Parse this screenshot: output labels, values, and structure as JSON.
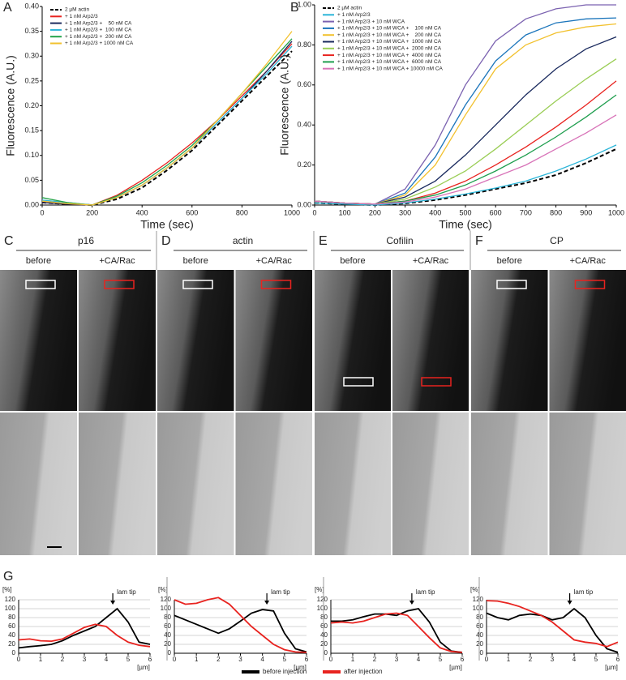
{
  "chart_data": [
    {
      "type": "line",
      "panel_label": "A",
      "y_label": "Fluorescence (A.U.)",
      "x_label": "Time (sec)",
      "legend": "upper left",
      "x": [
        0,
        100,
        200,
        300,
        400,
        500,
        600,
        700,
        800,
        900,
        1000
      ],
      "xlim": [
        0,
        1000
      ],
      "xticks": [
        0,
        200,
        400,
        600,
        800,
        1000
      ],
      "ylim": [
        0,
        0.4
      ],
      "yticks": [
        {
          "value": 0,
          "label": "0.00"
        },
        {
          "value": 0.05,
          "label": "0.05"
        },
        {
          "value": 0.1,
          "label": "0.10"
        },
        {
          "value": 0.15,
          "label": "0.15"
        },
        {
          "value": 0.2,
          "label": "0.20"
        },
        {
          "value": 0.25,
          "label": "0.25"
        },
        {
          "value": 0.3,
          "label": "0.30"
        },
        {
          "value": 0.35,
          "label": "0.35"
        },
        {
          "value": 0.4,
          "label": "0.40"
        }
      ],
      "series": [
        {
          "name": "2 µM actin",
          "color": "#000000",
          "style": "dashed",
          "values": [
            0.005,
            0.002,
            0.0,
            0.012,
            0.035,
            0.07,
            0.11,
            0.16,
            0.21,
            0.26,
            0.31
          ]
        },
        {
          "name": "+ 1 nM Arp2/3",
          "color": "#e8231f",
          "values": [
            0.005,
            0.002,
            0.0,
            0.02,
            0.05,
            0.085,
            0.125,
            0.17,
            0.22,
            0.27,
            0.325
          ]
        },
        {
          "name": "+ 1 nM Arp2/3 +    50 nM CA",
          "color": "#1a2a5e",
          "values": [
            0.005,
            0.002,
            0.0,
            0.015,
            0.04,
            0.075,
            0.115,
            0.165,
            0.215,
            0.27,
            0.33
          ]
        },
        {
          "name": "+ 1 nM Arp2/3 +  100 nM CA",
          "color": "#2bb5d8",
          "values": [
            0.01,
            0.005,
            0.0,
            0.015,
            0.04,
            0.075,
            0.115,
            0.165,
            0.215,
            0.265,
            0.32
          ]
        },
        {
          "name": "+ 1 nM Arp2/3 +  200 nM CA",
          "color": "#22a34a",
          "values": [
            0.015,
            0.005,
            0.0,
            0.018,
            0.045,
            0.08,
            0.12,
            0.17,
            0.225,
            0.28,
            0.335
          ]
        },
        {
          "name": "+ 1 nM Arp2/3 + 1000 nM CA",
          "color": "#f2c12e",
          "values": [
            0.008,
            0.003,
            0.0,
            0.015,
            0.04,
            0.075,
            0.115,
            0.17,
            0.225,
            0.285,
            0.35
          ]
        }
      ]
    },
    {
      "type": "line",
      "panel_label": "B",
      "y_label": "Fluorescence (A.U.)",
      "x_label": "Time (sec)",
      "legend": "upper left",
      "x": [
        0,
        100,
        200,
        300,
        400,
        500,
        600,
        700,
        800,
        900,
        1000
      ],
      "xlim": [
        0,
        1000
      ],
      "xticks": [
        0,
        100,
        200,
        300,
        400,
        500,
        600,
        700,
        800,
        900,
        1000
      ],
      "ylim": [
        0,
        1
      ],
      "yticks": [
        {
          "value": 0,
          "label": "0.00"
        },
        {
          "value": 0.2,
          "label": "0.20"
        },
        {
          "value": 0.4,
          "label": "0.40"
        },
        {
          "value": 0.6,
          "label": "0.60"
        },
        {
          "value": 0.8,
          "label": "0.80"
        },
        {
          "value": 1,
          "label": "1.00"
        }
      ],
      "series": [
        {
          "name": "2 µM actin",
          "color": "#000000",
          "style": "dashed",
          "values": [
            0.01,
            0.005,
            0.0,
            0.008,
            0.025,
            0.05,
            0.08,
            0.11,
            0.15,
            0.21,
            0.28
          ]
        },
        {
          "name": "+ 1 nM Arp2/3",
          "color": "#2bb5d8",
          "values": [
            0.01,
            0.005,
            0.0,
            0.01,
            0.03,
            0.055,
            0.085,
            0.12,
            0.17,
            0.23,
            0.3
          ]
        },
        {
          "name": "+ 1 nM Arp2/3 + 10 nM WCA",
          "color": "#7b62b0",
          "values": [
            0.02,
            0.01,
            0.005,
            0.08,
            0.3,
            0.6,
            0.82,
            0.93,
            0.98,
            1.0,
            1.0
          ]
        },
        {
          "name": "+ 1 nM Arp2/3 + 10 nM WCA +    100 nM CA",
          "color": "#1b75bb",
          "values": [
            0.02,
            0.01,
            0.005,
            0.06,
            0.24,
            0.5,
            0.72,
            0.85,
            0.91,
            0.93,
            0.935
          ]
        },
        {
          "name": "+ 1 nM Arp2/3 + 10 nM WCA +    200 nM CA",
          "color": "#f2c12e",
          "values": [
            0.02,
            0.01,
            0.005,
            0.05,
            0.2,
            0.45,
            0.68,
            0.8,
            0.86,
            0.89,
            0.905
          ]
        },
        {
          "name": "+ 1 nM Arp2/3 + 10 nM WCA +  1000 nM CA",
          "color": "#1a2a5e",
          "values": [
            0.02,
            0.01,
            0.005,
            0.04,
            0.12,
            0.25,
            0.4,
            0.55,
            0.68,
            0.78,
            0.84
          ]
        },
        {
          "name": "+ 1 nM Arp2/3 + 10 nM WCA +  2000 nM CA",
          "color": "#9acd55",
          "values": [
            0.02,
            0.01,
            0.005,
            0.03,
            0.09,
            0.17,
            0.28,
            0.4,
            0.52,
            0.63,
            0.73
          ]
        },
        {
          "name": "+ 1 nM Arp2/3 + 10 nM WCA +  4000 nM CA",
          "color": "#e8231f",
          "values": [
            0.02,
            0.01,
            0.005,
            0.02,
            0.06,
            0.12,
            0.2,
            0.29,
            0.39,
            0.5,
            0.62
          ]
        },
        {
          "name": "+ 1 nM Arp2/3 + 10 nM WCA +  6000 nM CA",
          "color": "#1f9e4e",
          "values": [
            0.02,
            0.01,
            0.005,
            0.02,
            0.05,
            0.1,
            0.17,
            0.25,
            0.34,
            0.44,
            0.55
          ]
        },
        {
          "name": "+ 1 nM Arp2/3 + 10 nM WCA + 10000 nM CA",
          "color": "#d873b8",
          "values": [
            0.02,
            0.01,
            0.005,
            0.015,
            0.04,
            0.08,
            0.14,
            0.2,
            0.28,
            0.36,
            0.45
          ]
        }
      ]
    },
    {
      "type": "line",
      "panel_label": "G",
      "y_label": "[%]",
      "x_label": "[µm]",
      "grid": true,
      "legend": "bottom",
      "x": [
        0,
        0.5,
        1,
        1.5,
        2,
        2.5,
        3,
        3.5,
        4,
        4.5,
        5,
        5.5,
        6
      ],
      "xlim": [
        0,
        6
      ],
      "xticks": [
        0,
        1,
        2,
        3,
        4,
        5,
        6
      ],
      "ylim": [
        0,
        120
      ],
      "yticks": [
        0,
        20,
        40,
        60,
        80,
        100,
        120
      ],
      "annotations": [
        {
          "text": "lam tip",
          "x": 4.3
        }
      ],
      "series": [
        {
          "name": "before injection",
          "color": "#000000",
          "values": [
            12,
            15,
            17,
            20,
            28,
            40,
            50,
            60,
            80,
            100,
            70,
            25,
            20
          ]
        },
        {
          "name": "after injection",
          "color": "#e8231f",
          "values": [
            30,
            32,
            28,
            27,
            32,
            45,
            58,
            65,
            60,
            40,
            25,
            18,
            15
          ]
        }
      ]
    },
    {
      "type": "line",
      "y_label": "[%]",
      "x_label": "[µm]",
      "grid": true,
      "x": [
        0,
        0.5,
        1,
        1.5,
        2,
        2.5,
        3,
        3.5,
        4,
        4.5,
        5,
        5.5,
        6
      ],
      "xlim": [
        0,
        6
      ],
      "xticks": [
        0,
        1,
        2,
        3,
        4,
        5,
        6
      ],
      "ylim": [
        0,
        120
      ],
      "yticks": [
        0,
        20,
        40,
        60,
        80,
        100,
        120
      ],
      "annotations": [
        {
          "text": "lam tip",
          "x": 4.2
        }
      ],
      "series": [
        {
          "color": "#000000",
          "values": [
            85,
            75,
            65,
            55,
            45,
            55,
            72,
            90,
            98,
            95,
            45,
            10,
            3
          ]
        },
        {
          "color": "#e8231f",
          "values": [
            120,
            110,
            112,
            120,
            125,
            110,
            85,
            60,
            40,
            20,
            8,
            3,
            2
          ]
        }
      ]
    },
    {
      "type": "line",
      "y_label": "[%]",
      "x_label": "[µm]",
      "grid": true,
      "x": [
        0,
        0.5,
        1,
        1.5,
        2,
        2.5,
        3,
        3.5,
        4,
        4.5,
        5,
        5.5,
        6
      ],
      "xlim": [
        0,
        6
      ],
      "xticks": [
        0,
        1,
        2,
        3,
        4,
        5,
        6
      ],
      "ylim": [
        0,
        120
      ],
      "yticks": [
        0,
        20,
        40,
        60,
        80,
        100,
        120
      ],
      "annotations": [
        {
          "text": "lam tip",
          "x": 3.7
        }
      ],
      "series": [
        {
          "color": "#000000",
          "values": [
            72,
            72,
            75,
            82,
            88,
            88,
            85,
            95,
            100,
            70,
            25,
            5,
            2
          ]
        },
        {
          "color": "#e8231f",
          "values": [
            68,
            70,
            68,
            72,
            80,
            88,
            90,
            85,
            60,
            35,
            12,
            4,
            2
          ]
        }
      ]
    },
    {
      "type": "line",
      "y_label": "[%]",
      "x_label": "[µm]",
      "grid": true,
      "x": [
        0,
        0.5,
        1,
        1.5,
        2,
        2.5,
        3,
        3.5,
        4,
        4.5,
        5,
        5.5,
        6
      ],
      "xlim": [
        0,
        6
      ],
      "xticks": [
        0,
        1,
        2,
        3,
        4,
        5,
        6
      ],
      "ylim": [
        0,
        120
      ],
      "yticks": [
        0,
        20,
        40,
        60,
        80,
        100,
        120
      ],
      "annotations": [
        {
          "text": "lam tip",
          "x": 3.8
        }
      ],
      "series": [
        {
          "color": "#000000",
          "values": [
            90,
            80,
            75,
            85,
            88,
            85,
            75,
            80,
            100,
            80,
            40,
            10,
            2
          ]
        },
        {
          "color": "#e8231f",
          "values": [
            118,
            117,
            112,
            105,
            95,
            85,
            70,
            50,
            30,
            25,
            22,
            15,
            25
          ]
        }
      ]
    }
  ],
  "image_panels": [
    {
      "label": "C",
      "title": "p16",
      "columns": [
        "before",
        "+CA/Rac"
      ]
    },
    {
      "label": "D",
      "title": "actin",
      "columns": [
        "before",
        "+CA/Rac"
      ]
    },
    {
      "label": "E",
      "title": "Cofilin",
      "columns": [
        "before",
        "+CA/Rac"
      ]
    },
    {
      "label": "F",
      "title": "CP",
      "columns": [
        "before",
        "+CA/Rac"
      ]
    }
  ]
}
